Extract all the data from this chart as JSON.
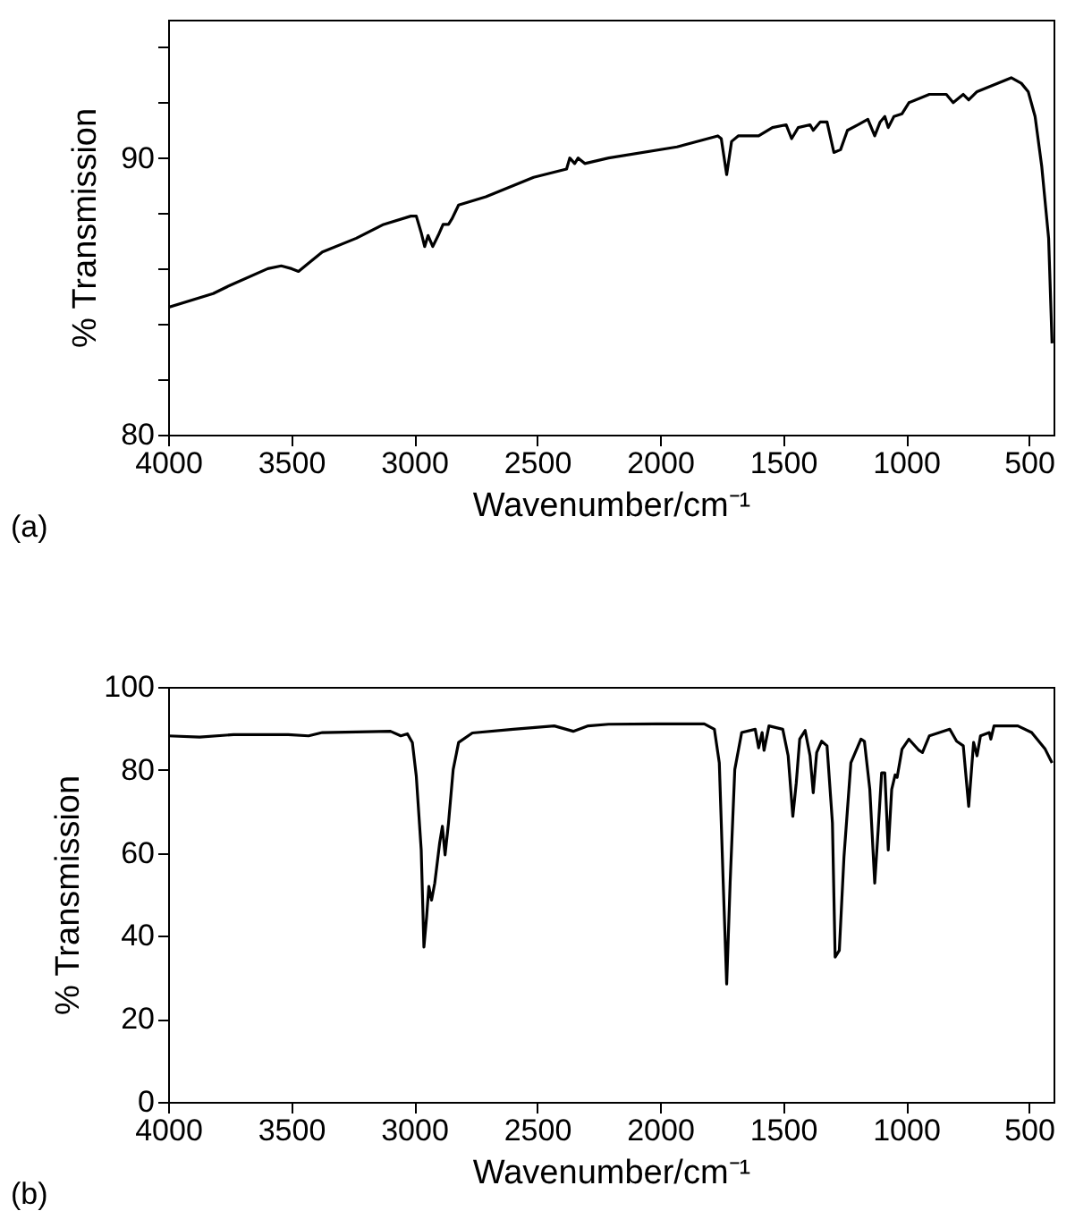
{
  "chart_data": [
    {
      "type": "line",
      "xlabel": "Wavenumber/cm⁻¹",
      "ylabel": "% Transmission",
      "annotations": [
        "(a)"
      ],
      "xlim": [
        4000,
        400
      ],
      "xticks": [
        4000,
        3500,
        3000,
        2500,
        2000,
        1500,
        1000,
        500
      ],
      "ylim": [
        80,
        95
      ],
      "yticks": [
        80,
        {
          "value": 82,
          "label": null
        },
        {
          "value": 84,
          "label": null
        },
        {
          "value": 86,
          "label": null
        },
        {
          "value": 88,
          "label": null
        },
        90,
        {
          "value": 92,
          "label": null
        },
        {
          "value": 94,
          "label": null
        }
      ],
      "grid": false,
      "line_style": "solid",
      "series": [
        {
          "color": "#000000",
          "x": [
            4000,
            3817,
            3748,
            3595,
            3540,
            3498,
            3470,
            3429,
            3373,
            3235,
            3124,
            3013,
            2991,
            2971,
            2957,
            2943,
            2924,
            2902,
            2882,
            2860,
            2846,
            2819,
            2708,
            2514,
            2380,
            2367,
            2347,
            2333,
            2306,
            2209,
            1931,
            1765,
            1751,
            1729,
            1709,
            1682,
            1599,
            1543,
            1487,
            1465,
            1438,
            1390,
            1377,
            1349,
            1321,
            1293,
            1266,
            1238,
            1196,
            1155,
            1127,
            1105,
            1086,
            1072,
            1049,
            1016,
            988,
            905,
            836,
            808,
            767,
            745,
            711,
            628,
            572,
            531,
            503,
            475,
            448,
            420,
            406
          ],
          "values": [
            84.6,
            85.1,
            85.4,
            86.0,
            86.1,
            86.0,
            85.9,
            86.2,
            86.6,
            87.1,
            87.6,
            87.9,
            87.9,
            87.3,
            86.8,
            87.2,
            86.8,
            87.2,
            87.6,
            87.6,
            87.8,
            88.3,
            88.6,
            89.3,
            89.6,
            90.0,
            89.8,
            90.0,
            89.8,
            90.0,
            90.4,
            90.8,
            90.7,
            89.4,
            90.6,
            90.8,
            90.8,
            91.1,
            91.2,
            90.7,
            91.1,
            91.2,
            91.0,
            91.3,
            91.3,
            90.2,
            90.3,
            91.0,
            91.2,
            91.4,
            90.8,
            91.3,
            91.5,
            91.1,
            91.5,
            91.6,
            92.0,
            92.3,
            92.3,
            92.0,
            92.3,
            92.1,
            92.4,
            92.7,
            92.9,
            92.7,
            92.4,
            91.5,
            89.7,
            87.1,
            83.3
          ]
        }
      ]
    },
    {
      "type": "line",
      "xlabel": "Wavenumber/cm⁻¹",
      "ylabel": "% Transmission",
      "annotations": [
        "(b)"
      ],
      "xlim": [
        4000,
        400
      ],
      "xticks": [
        4000,
        3500,
        3000,
        2500,
        2000,
        1500,
        1000,
        500
      ],
      "ylim": [
        0,
        100
      ],
      "yticks": [
        0,
        20,
        40,
        60,
        80,
        100
      ],
      "grid": false,
      "line_style": "solid",
      "series": [
        {
          "color": "#000000",
          "x": [
            4000,
            3872,
            3734,
            3512,
            3429,
            3373,
            3096,
            3054,
            3027,
            3007,
            2991,
            2971,
            2960,
            2949,
            2940,
            2929,
            2916,
            2896,
            2885,
            2874,
            2860,
            2841,
            2819,
            2763,
            2597,
            2430,
            2353,
            2292,
            2209,
            2015,
            1820,
            1779,
            1759,
            1743,
            1729,
            1715,
            1696,
            1668,
            1613,
            1599,
            1585,
            1577,
            1557,
            1501,
            1479,
            1460,
            1446,
            1432,
            1410,
            1390,
            1377,
            1363,
            1343,
            1321,
            1299,
            1288,
            1271,
            1252,
            1224,
            1183,
            1169,
            1147,
            1127,
            1113,
            1099,
            1086,
            1072,
            1058,
            1044,
            1036,
            1016,
            988,
            947,
            933,
            905,
            822,
            794,
            767,
            745,
            725,
            711,
            697,
            661,
            655,
            642,
            545,
            489,
            434,
            406
          ],
          "values": [
            88.2,
            87.9,
            88.5,
            88.5,
            88.2,
            89.0,
            89.3,
            88.2,
            88.7,
            86.6,
            78.5,
            60.7,
            37.3,
            44.6,
            51.9,
            48.6,
            52.7,
            62.4,
            66.4,
            59.5,
            67.2,
            80.1,
            86.6,
            88.9,
            89.8,
            90.6,
            89.3,
            90.6,
            91.0,
            91.1,
            91.1,
            89.8,
            81.7,
            52.7,
            28.4,
            52.7,
            80.1,
            89.0,
            89.8,
            85.3,
            89.0,
            84.7,
            90.6,
            89.8,
            83.4,
            68.8,
            76.9,
            87.4,
            89.5,
            83.4,
            74.5,
            84.2,
            86.9,
            85.8,
            67.2,
            34.9,
            36.5,
            59.1,
            81.7,
            87.4,
            86.9,
            75.3,
            52.7,
            65.6,
            79.3,
            79.3,
            60.7,
            75.3,
            78.8,
            78.2,
            85.0,
            87.4,
            84.7,
            84.2,
            88.2,
            89.8,
            86.9,
            85.8,
            71.2,
            86.6,
            83.4,
            88.2,
            89.0,
            87.4,
            90.6,
            90.6,
            89.0,
            85.0,
            81.7
          ]
        }
      ]
    }
  ]
}
